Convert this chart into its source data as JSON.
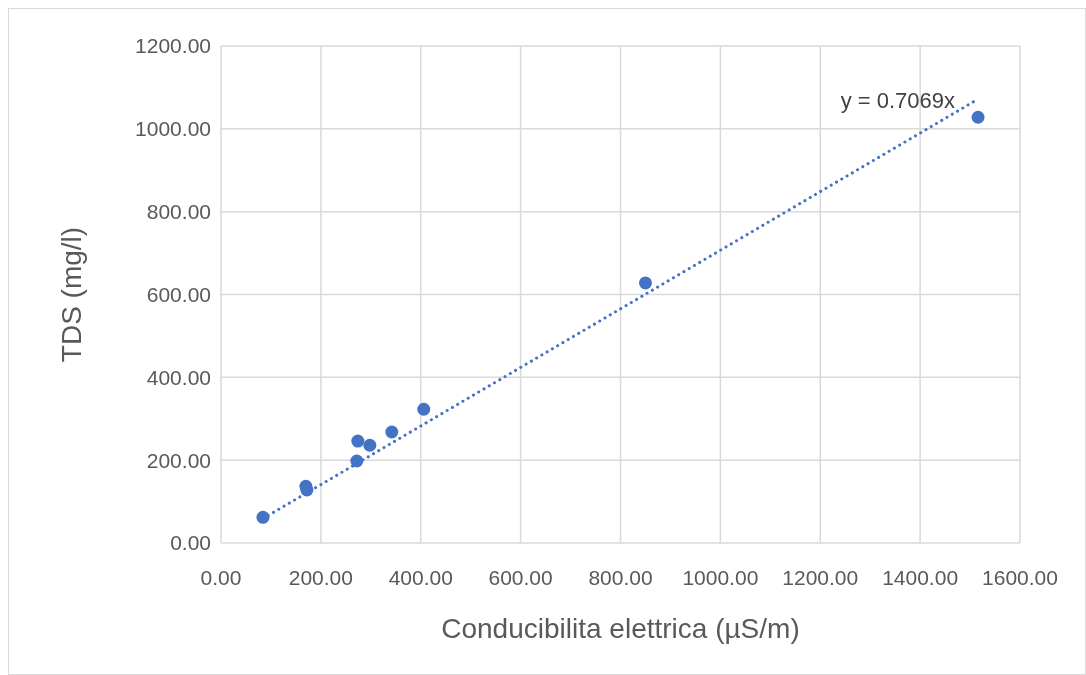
{
  "chart_data": {
    "type": "scatter",
    "xlabel": "Conducibilita elettrica (µS/m)",
    "ylabel": "TDS (mg/l)",
    "xlim": [
      0,
      1600
    ],
    "ylim": [
      0,
      1200
    ],
    "xticks": [
      {
        "value": 0,
        "label": "0.00"
      },
      {
        "value": 200,
        "label": "200.00"
      },
      {
        "value": 400,
        "label": "400.00"
      },
      {
        "value": 600,
        "label": "600.00"
      },
      {
        "value": 800,
        "label": "800.00"
      },
      {
        "value": 1000,
        "label": "1000.00"
      },
      {
        "value": 1200,
        "label": "1200.00"
      },
      {
        "value": 1400,
        "label": "1400.00"
      },
      {
        "value": 1600,
        "label": "1600.00"
      }
    ],
    "yticks": [
      {
        "value": 0,
        "label": "0.00"
      },
      {
        "value": 200,
        "label": "200.00"
      },
      {
        "value": 400,
        "label": "400.00"
      },
      {
        "value": 600,
        "label": "600.00"
      },
      {
        "value": 800,
        "label": "800.00"
      },
      {
        "value": 1000,
        "label": "1000.00"
      },
      {
        "value": 1200,
        "label": "1200.00"
      }
    ],
    "grid": true,
    "marker": "circle",
    "annotations": [
      "y = 0.7069x"
    ],
    "series": [
      {
        "color": "#4472c4",
        "x": [
          84,
          170,
          172,
          272,
          274,
          298,
          342,
          406,
          850,
          1516
        ],
        "values": [
          62,
          137,
          128,
          198,
          246,
          236,
          268,
          323,
          628,
          1028
        ]
      },
      {
        "type": "line",
        "color": "#4472c4",
        "line_style": "dotted",
        "marker": "none",
        "x": [
          84,
          1512
        ],
        "values": [
          59,
          1069
        ]
      }
    ]
  }
}
